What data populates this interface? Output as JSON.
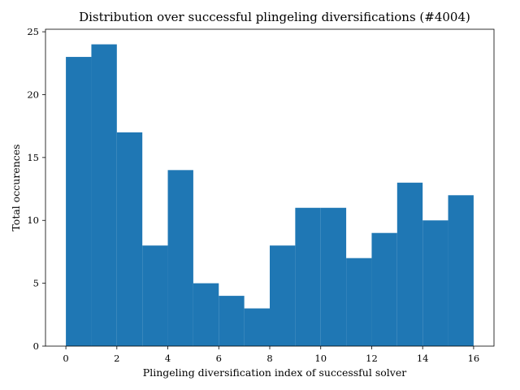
{
  "chart_data": {
    "type": "bar",
    "title": "Distribution over successful plingeling diversifications (#4004)",
    "xlabel": "Plingeling diversification index of successful solver",
    "ylabel": "Total occurences",
    "bin_edges": [
      0,
      1,
      2,
      3,
      4,
      5,
      6,
      7,
      8,
      9,
      10,
      11,
      12,
      13,
      14,
      15,
      16
    ],
    "values": [
      23,
      24,
      17,
      8,
      14,
      5,
      4,
      3,
      8,
      11,
      11,
      7,
      9,
      13,
      10,
      12
    ],
    "xlim": [
      -0.8,
      16.8
    ],
    "ylim": [
      0,
      25.2
    ],
    "xticks": [
      0,
      2,
      4,
      6,
      8,
      10,
      12,
      14,
      16
    ],
    "yticks": [
      0,
      5,
      10,
      15,
      20,
      25
    ],
    "grid": false,
    "bar_color": "#1f77b4"
  }
}
